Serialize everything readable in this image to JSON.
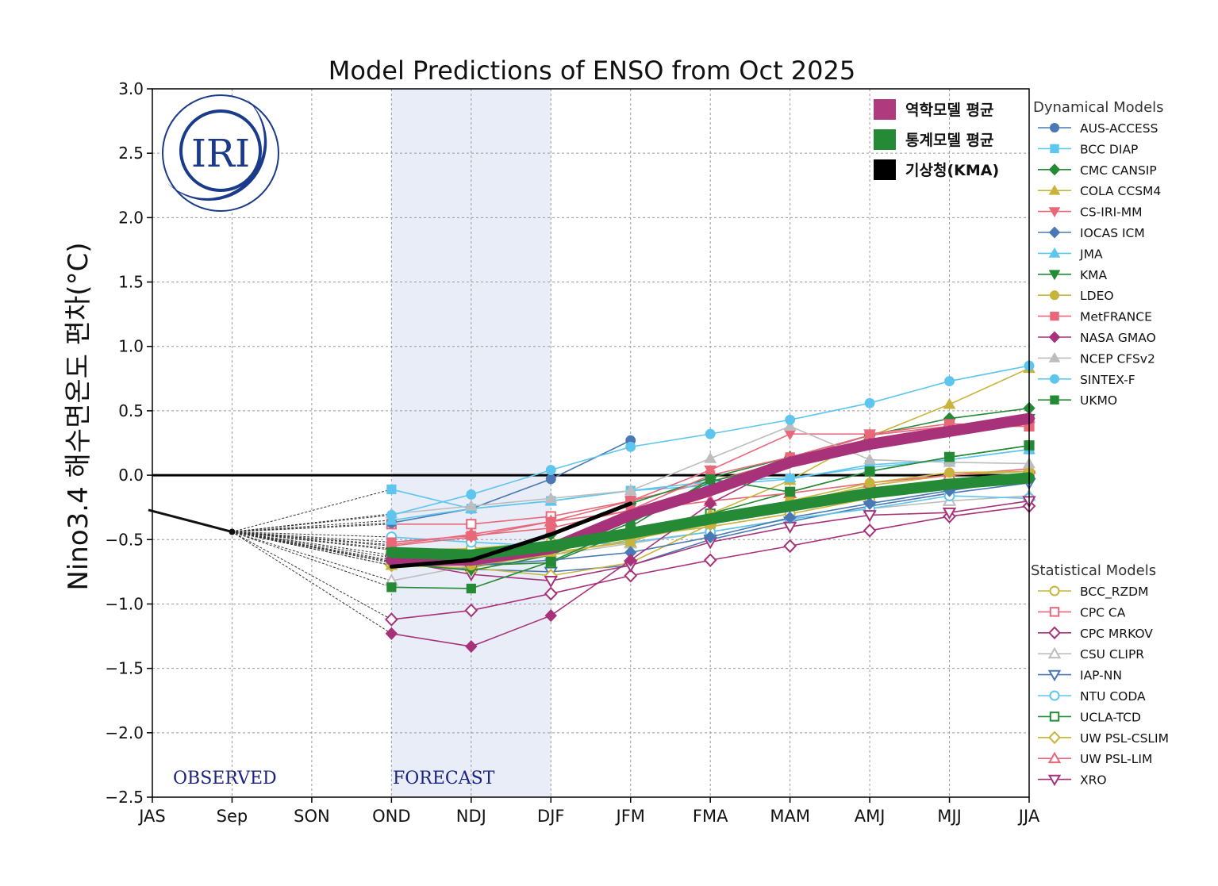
{
  "chart_data": {
    "type": "line",
    "title": "Model Predictions of ENSO from Oct 2025",
    "xlabel": "",
    "ylabel": "Nino3.4 해수면온도 편차(°C)",
    "categories": [
      "JAS",
      "Sep",
      "SON",
      "OND",
      "NDJ",
      "DJF",
      "JFM",
      "FMA",
      "MAM",
      "AMJ",
      "MJJ",
      "JJA"
    ],
    "ylim": [
      -2.5,
      3.0
    ],
    "yticks": [
      "3.0",
      "2.5",
      "2.0",
      "1.5",
      "1.0",
      "0.5",
      "0.0",
      "−0.5",
      "−1.0",
      "−1.5",
      "−2.0",
      "−2.5"
    ],
    "grid": true,
    "observed_label": "OBSERVED",
    "forecast_label": "FORECAST",
    "forecast_band": [
      "OND",
      "DJF"
    ],
    "logo_text": "IRI",
    "observed": {
      "x": [
        -0.05,
        1
      ],
      "values": [
        -0.27,
        -0.44
      ]
    },
    "summary_legend": [
      {
        "name": "역학모델 평균",
        "color": "#b03a7e"
      },
      {
        "name": "통계모델 평균",
        "color": "#248a35"
      },
      {
        "name": "기상청(KMA)",
        "color": "#000000"
      }
    ],
    "averages": [
      {
        "name": "역학모델 평균",
        "color": "#a8327a",
        "width": 14,
        "start": 3,
        "values": [
          -0.66,
          -0.66,
          -0.57,
          -0.31,
          -0.12,
          0.1,
          0.24,
          0.34,
          0.44
        ]
      },
      {
        "name": "통계모델 평균",
        "color": "#248a35",
        "width": 14,
        "start": 3,
        "values": [
          -0.6,
          -0.62,
          -0.55,
          -0.45,
          -0.34,
          -0.24,
          -0.14,
          -0.07,
          -0.02
        ]
      },
      {
        "name": "기상청(KMA)",
        "color": "#000000",
        "width": 5,
        "start": 3,
        "values": [
          -0.71,
          -0.66,
          -0.46,
          -0.22
        ]
      }
    ],
    "dynamical_title": "Dynamical Models",
    "statistical_title": "Statistical Models",
    "dynamical_models": [
      {
        "name": "AUS-ACCESS",
        "color": "#4a78b4",
        "marker": "circle",
        "start": 3,
        "values": [
          -0.37,
          -0.26,
          -0.03,
          0.27
        ]
      },
      {
        "name": "BCC DIAP",
        "color": "#5ec6ee",
        "marker": "square",
        "start": 3,
        "values": [
          -0.11,
          -0.26,
          -0.2,
          -0.12,
          -0.08,
          -0.03,
          0.08,
          0.12,
          0.2
        ]
      },
      {
        "name": "CMC CANSIP",
        "color": "#248a35",
        "marker": "diamond",
        "start": 3,
        "values": [
          -0.57,
          -0.64,
          -0.46,
          -0.22,
          -0.02,
          0.14,
          0.31,
          0.44,
          0.52
        ]
      },
      {
        "name": "COLA CCSM4",
        "color": "#c8b43c",
        "marker": "triangle-up",
        "start": 3,
        "values": [
          -0.7,
          -0.72,
          -0.6,
          -0.52,
          -0.3,
          -0.04,
          0.3,
          0.55,
          0.83
        ]
      },
      {
        "name": "CS-IRI-MM",
        "color": "#e8687a",
        "marker": "triangle-down",
        "start": 3,
        "values": [
          -0.55,
          -0.48,
          -0.36,
          -0.2,
          0.04,
          0.32,
          0.32,
          0.4,
          0.38
        ]
      },
      {
        "name": "IOCAS ICM",
        "color": "#4a78b4",
        "marker": "diamond",
        "start": 3,
        "values": [
          -0.62,
          -0.7,
          -0.66,
          -0.6,
          -0.48,
          -0.33,
          -0.22,
          -0.12,
          -0.03
        ]
      },
      {
        "name": "JMA",
        "color": "#5ec6ee",
        "marker": "triangle-up",
        "start": 3,
        "values": [
          -0.35,
          -0.26,
          -0.2,
          -0.12,
          -0.05,
          -0.02,
          0.06,
          0.12,
          0.2
        ]
      },
      {
        "name": "KMA",
        "color": "#248a35",
        "marker": "triangle-down",
        "start": 3,
        "values": [
          -0.68,
          -0.74,
          -0.62,
          -0.37,
          -0.05,
          0.1,
          0.25,
          0.35,
          0.44
        ]
      },
      {
        "name": "LDEO",
        "color": "#c8b43c",
        "marker": "circle",
        "start": 3,
        "values": [
          -0.64,
          -0.7,
          -0.62,
          -0.5,
          -0.38,
          -0.2,
          -0.06,
          0.02,
          0.03
        ]
      },
      {
        "name": "MetFRANCE",
        "color": "#e8687a",
        "marker": "square",
        "start": 3,
        "values": [
          -0.52,
          -0.47,
          -0.41,
          -0.27,
          0.0,
          0.14,
          0.31,
          0.38,
          0.38
        ]
      },
      {
        "name": "NASA GMAO",
        "color": "#a8327a",
        "marker": "diamond",
        "start": 3,
        "values": [
          -1.23,
          -1.33,
          -1.09,
          -0.66,
          -0.22,
          0.1,
          0.24,
          0.34,
          0.44
        ]
      },
      {
        "name": "NCEP CFSv2",
        "color": "#bdbdbd",
        "marker": "triangle-up",
        "start": 3,
        "values": [
          -0.3,
          -0.24,
          -0.18,
          -0.12,
          0.13,
          0.38,
          0.12,
          0.1,
          0.09
        ]
      },
      {
        "name": "SINTEX-F",
        "color": "#5ec6ee",
        "marker": "circle",
        "start": 3,
        "values": [
          -0.31,
          -0.15,
          0.04,
          0.22,
          0.32,
          0.43,
          0.56,
          0.73,
          0.85
        ]
      },
      {
        "name": "UKMO",
        "color": "#248a35",
        "marker": "square",
        "start": 3,
        "values": [
          -0.87,
          -0.88,
          -0.67,
          -0.4,
          -0.03,
          -0.13,
          0.03,
          0.14,
          0.23
        ]
      }
    ],
    "statistical_models": [
      {
        "name": "BCC_RZDM",
        "color": "#c8b43c",
        "marker": "circle",
        "start": 3,
        "values": [
          -0.58,
          -0.57,
          -0.52,
          -0.48,
          -0.4,
          -0.3,
          -0.18,
          -0.08,
          0.0
        ]
      },
      {
        "name": "CPC CA",
        "color": "#e8687a",
        "marker": "square",
        "start": 3,
        "values": [
          -0.38,
          -0.38,
          -0.32,
          -0.2,
          -0.05,
          0.12,
          0.31,
          0.38,
          0.38
        ]
      },
      {
        "name": "CPC MRKOV",
        "color": "#a8327a",
        "marker": "diamond",
        "start": 3,
        "values": [
          -1.12,
          -1.05,
          -0.92,
          -0.78,
          -0.66,
          -0.55,
          -0.43,
          -0.32,
          -0.24
        ]
      },
      {
        "name": "CSU CLIPR",
        "color": "#bdbdbd",
        "marker": "triangle-up",
        "start": 3,
        "values": [
          -0.82,
          -0.7,
          -0.62,
          -0.53,
          -0.44,
          -0.34,
          -0.26,
          -0.2,
          -0.16
        ]
      },
      {
        "name": "IAP-NN",
        "color": "#4a78b4",
        "marker": "triangle-down",
        "start": 3,
        "values": [
          -0.68,
          -0.73,
          -0.75,
          -0.7,
          -0.5,
          -0.36,
          -0.24,
          -0.14,
          -0.06
        ]
      },
      {
        "name": "NTU CODA",
        "color": "#5ec6ee",
        "marker": "circle",
        "start": 3,
        "values": [
          -0.48,
          -0.52,
          -0.55,
          -0.52,
          -0.44,
          -0.34,
          -0.26,
          -0.16,
          -0.18
        ]
      },
      {
        "name": "UCLA-TCD",
        "color": "#248a35",
        "marker": "square",
        "start": 3,
        "values": [
          -0.67,
          -0.7,
          -0.68,
          -0.43,
          -0.3,
          -0.13,
          0.03,
          0.14,
          0.23
        ]
      },
      {
        "name": "UW PSL-CSLIM",
        "color": "#c8b43c",
        "marker": "diamond",
        "start": 3,
        "values": [
          -0.7,
          -0.72,
          -0.78,
          -0.68,
          -0.38,
          -0.22,
          -0.08,
          0.0,
          0.03
        ]
      },
      {
        "name": "UW PSL-LIM",
        "color": "#e8687a",
        "marker": "triangle-up",
        "start": 3,
        "values": [
          -0.54,
          -0.46,
          -0.36,
          -0.28,
          -0.2,
          -0.14,
          -0.06,
          0.0,
          0.05
        ]
      },
      {
        "name": "XRO",
        "color": "#a8327a",
        "marker": "triangle-down",
        "start": 3,
        "values": [
          -0.66,
          -0.77,
          -0.82,
          -0.7,
          -0.52,
          -0.4,
          -0.31,
          -0.29,
          -0.2
        ]
      }
    ]
  }
}
